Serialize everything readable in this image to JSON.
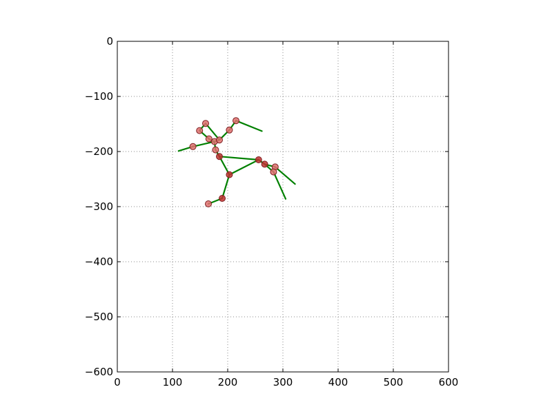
{
  "chart_data": {
    "type": "line",
    "title": "",
    "xlabel": "",
    "ylabel": "",
    "xlim": [
      0,
      600
    ],
    "ylim": [
      -600,
      0
    ],
    "xticks": [
      0,
      100,
      200,
      300,
      400,
      500,
      600
    ],
    "yticks": [
      0,
      -100,
      -200,
      -300,
      -400,
      -500,
      -600
    ],
    "xtick_labels": [
      "0",
      "100",
      "200",
      "300",
      "400",
      "500",
      "600"
    ],
    "ytick_labels": [
      "0",
      "−100",
      "−200",
      "−300",
      "−400",
      "−500",
      "−600"
    ],
    "grid": true,
    "legend": false,
    "colors": {
      "segment": "#008000",
      "marker_fill": "#e07070",
      "marker_fill_dark": "#c03030",
      "marker_edge": "#7a2020",
      "grid": "#888888",
      "axes": "#000000"
    },
    "segments": [
      {
        "x": [
          185,
          178
        ],
        "y": [
          -209,
          -197
        ]
      },
      {
        "x": [
          178,
          176
        ],
        "y": [
          -197,
          -182
        ]
      },
      {
        "x": [
          176,
          166
        ],
        "y": [
          -182,
          -177
        ]
      },
      {
        "x": [
          176,
          185
        ],
        "y": [
          -182,
          -179
        ]
      },
      {
        "x": [
          166,
          149
        ],
        "y": [
          -177,
          -162
        ]
      },
      {
        "x": [
          149,
          160
        ],
        "y": [
          -162,
          -149
        ]
      },
      {
        "x": [
          160,
          185
        ],
        "y": [
          -149,
          -179
        ]
      },
      {
        "x": [
          185,
          203
        ],
        "y": [
          -179,
          -161
        ]
      },
      {
        "x": [
          203,
          215
        ],
        "y": [
          -161,
          -144
        ]
      },
      {
        "x": [
          215,
          262
        ],
        "y": [
          -144,
          -163
        ]
      },
      {
        "x": [
          176,
          137
        ],
        "y": [
          -182,
          -191
        ]
      },
      {
        "x": [
          137,
          111
        ],
        "y": [
          -191,
          -199
        ]
      },
      {
        "x": [
          185,
          256
        ],
        "y": [
          -209,
          -215
        ]
      },
      {
        "x": [
          185,
          203
        ],
        "y": [
          -209,
          -242
        ]
      },
      {
        "x": [
          256,
          203
        ],
        "y": [
          -215,
          -242
        ]
      },
      {
        "x": [
          256,
          267
        ],
        "y": [
          -215,
          -223
        ]
      },
      {
        "x": [
          267,
          286
        ],
        "y": [
          -223,
          -228
        ]
      },
      {
        "x": [
          286,
          322
        ],
        "y": [
          -228,
          -259
        ]
      },
      {
        "x": [
          267,
          283
        ],
        "y": [
          -223,
          -237
        ]
      },
      {
        "x": [
          283,
          305
        ],
        "y": [
          -237,
          -286
        ]
      },
      {
        "x": [
          203,
          190
        ],
        "y": [
          -242,
          -285
        ]
      },
      {
        "x": [
          190,
          165
        ],
        "y": [
          -285,
          -295
        ]
      }
    ],
    "points": [
      {
        "x": 185,
        "y": -209,
        "shade": "dark"
      },
      {
        "x": 178,
        "y": -197,
        "shade": "light"
      },
      {
        "x": 176,
        "y": -182,
        "shade": "light"
      },
      {
        "x": 166,
        "y": -177,
        "shade": "light"
      },
      {
        "x": 185,
        "y": -179,
        "shade": "light"
      },
      {
        "x": 149,
        "y": -162,
        "shade": "light"
      },
      {
        "x": 160,
        "y": -149,
        "shade": "light"
      },
      {
        "x": 203,
        "y": -161,
        "shade": "light"
      },
      {
        "x": 215,
        "y": -144,
        "shade": "light"
      },
      {
        "x": 137,
        "y": -191,
        "shade": "light"
      },
      {
        "x": 256,
        "y": -215,
        "shade": "dark"
      },
      {
        "x": 267,
        "y": -223,
        "shade": "dark"
      },
      {
        "x": 286,
        "y": -228,
        "shade": "light"
      },
      {
        "x": 283,
        "y": -237,
        "shade": "light"
      },
      {
        "x": 203,
        "y": -242,
        "shade": "dark"
      },
      {
        "x": 190,
        "y": -285,
        "shade": "dark"
      },
      {
        "x": 165,
        "y": -295,
        "shade": "light"
      }
    ]
  }
}
